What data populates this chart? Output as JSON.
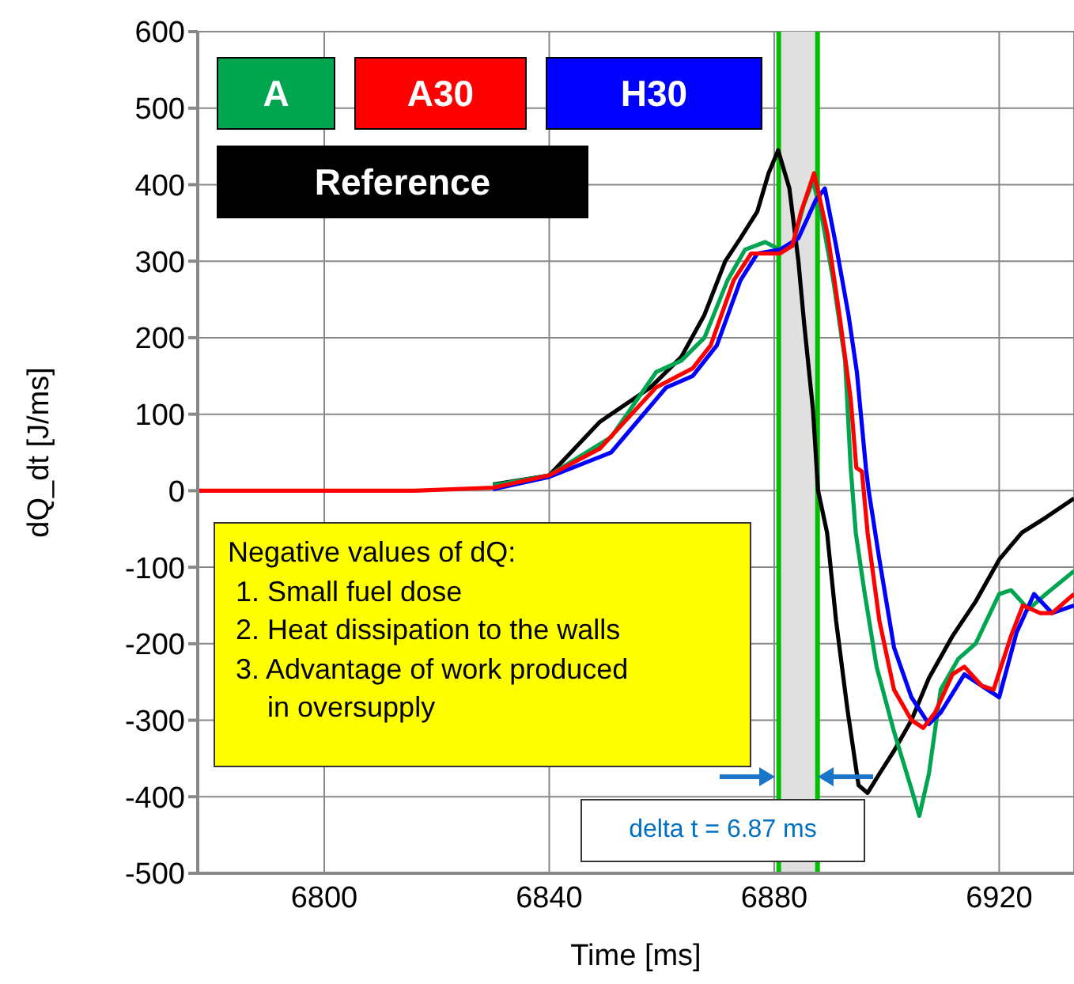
{
  "chart_data": {
    "type": "line",
    "xlabel": "Time [ms]",
    "ylabel": "dQ_dt [J/ms]",
    "xlim": [
      6777.5,
      6933.3
    ],
    "xticks": [
      6800,
      6840,
      6880,
      6920
    ],
    "ylim": [
      -500,
      600
    ],
    "yticks": [
      -500,
      -400,
      -300,
      -200,
      -100,
      0,
      100,
      200,
      300,
      400,
      500,
      600
    ],
    "grid": true,
    "legend": "top left",
    "series": [
      {
        "name": "A",
        "color": "#00a550",
        "x": [
          6830,
          6840,
          6851,
          6859,
          6863.5,
          6867.6,
          6871.7,
          6874.8,
          6878.4,
          6881,
          6883.2,
          6885.3,
          6886.9,
          6888.4,
          6890.5,
          6892.6,
          6893.6,
          6894.5,
          6896,
          6898.2,
          6901.3,
          6904.4,
          6905.8,
          6907.5,
          6909.6,
          6912.7,
          6915.8,
          6920,
          6922.1,
          6925.2,
          6928.3,
          6933.3
        ],
        "values": [
          7,
          20,
          70,
          155,
          170,
          200,
          275,
          315,
          325,
          315,
          320,
          375,
          405,
          360,
          275,
          170,
          30,
          -55,
          -130,
          -230,
          -315,
          -390,
          -425,
          -370,
          -260,
          -220,
          -200,
          -135,
          -130,
          -155,
          -135,
          -105
        ]
      },
      {
        "name": "A30",
        "color": "#ff0000",
        "x": [
          6777.5,
          6816,
          6830,
          6840,
          6849,
          6859,
          6865.5,
          6868.7,
          6872.8,
          6875.9,
          6881,
          6883.2,
          6884.8,
          6887.1,
          6889.5,
          6891.5,
          6893.6,
          6894.6,
          6895.6,
          6896.6,
          6898.7,
          6901.3,
          6904.4,
          6906.5,
          6908.6,
          6911.7,
          6913.8,
          6916.9,
          6919,
          6922.1,
          6924.2,
          6927.3,
          6929.4,
          6933.3
        ],
        "values": [
          0,
          0,
          4,
          20,
          55,
          135,
          160,
          190,
          275,
          310,
          310,
          320,
          365,
          415,
          335,
          235,
          120,
          30,
          25,
          -55,
          -170,
          -260,
          -300,
          -310,
          -290,
          -240,
          -230,
          -255,
          -260,
          -190,
          -150,
          -160,
          -160,
          -135
        ]
      },
      {
        "name": "H30",
        "color": "#0000ff",
        "x": [
          6830,
          6840,
          6851,
          6860.8,
          6865.5,
          6869.8,
          6874,
          6877,
          6881,
          6884.3,
          6887.4,
          6889,
          6891,
          6893.2,
          6894.7,
          6896.3,
          6896.8,
          6898.7,
          6901.3,
          6904.4,
          6907.5,
          6909.6,
          6913.8,
          6916.9,
          6920,
          6923.1,
          6926.2,
          6929.4,
          6933.3
        ],
        "values": [
          2,
          18,
          50,
          135,
          150,
          190,
          275,
          310,
          315,
          330,
          380,
          395,
          320,
          230,
          155,
          30,
          0,
          -90,
          -205,
          -270,
          -305,
          -290,
          -240,
          -255,
          -270,
          -185,
          -135,
          -160,
          -150
        ]
      },
      {
        "name": "Reference",
        "color": "#000000",
        "x": [
          6830,
          6840,
          6849,
          6858,
          6863.5,
          6867.6,
          6871.3,
          6874,
          6877,
          6879,
          6880.7,
          6882.7,
          6884.3,
          6885.3,
          6886.9,
          6887.8,
          6889.4,
          6891,
          6893,
          6895,
          6896.6,
          6898.7,
          6901.3,
          6904.4,
          6907.5,
          6911.7,
          6915.8,
          6920,
          6924,
          6928.3,
          6933.3
        ],
        "values": [
          8,
          20,
          90,
          135,
          175,
          230,
          300,
          330,
          365,
          415,
          445,
          395,
          300,
          220,
          105,
          0,
          -55,
          -170,
          -285,
          -385,
          -395,
          -370,
          -340,
          -300,
          -245,
          -190,
          -145,
          -90,
          -55,
          -35,
          -10
        ]
      }
    ],
    "ref_lines": [
      {
        "axis": "x",
        "value": 6880.8,
        "color": "#00c000"
      },
      {
        "axis": "x",
        "value": 6887.7,
        "color": "#00c000"
      }
    ],
    "bands": [
      {
        "axis": "x",
        "from": 6880.8,
        "to": 6887.7,
        "color": "#e0e0e0"
      }
    ],
    "annotations": [
      "Negative values of dQ:\n 1. Small fuel dose\n 2. Heat dissipation to the walls\n 3. Advantage of work produced\n     in oversupply",
      "delta t = 6.87 ms"
    ]
  }
}
